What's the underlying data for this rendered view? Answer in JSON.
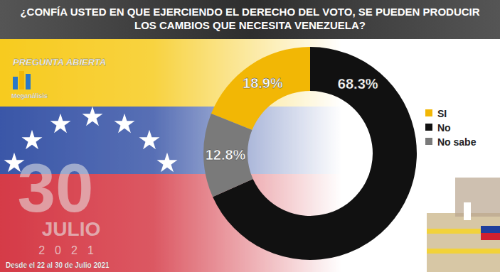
{
  "chart_data": {
    "type": "donut",
    "title": "¿CONFÍA USTED EN QUE EJERCIENDO EL DERECHO DEL VOTO, SE PUEDEN PRODUCIR LOS CAMBIOS QUE NECESITA VENEZUELA?",
    "annotations": [
      "PREGUNTA ABIERTA",
      "Meganálisis",
      "30",
      "JULIO",
      "2021",
      "Desde el 22 al 30 de Julio 2021"
    ],
    "categories": [
      "SI",
      "No",
      "No sabe"
    ],
    "values": [
      18.9,
      68.3,
      12.8
    ],
    "value_labels": [
      "18.9%",
      "68.3%",
      "12.8%"
    ],
    "colors": [
      "#f2b705",
      "#111111",
      "#7a7a7a"
    ],
    "data_labels": true,
    "legend": "right"
  }
}
